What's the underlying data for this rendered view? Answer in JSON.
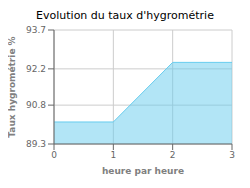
{
  "chart_data": {
    "type": "area",
    "title": "Evolution du taux d'hygrométrie",
    "xlabel": "heure par heure",
    "ylabel": "Taux hygrométrie %",
    "x": [
      0,
      1,
      2,
      3
    ],
    "values": [
      90.15,
      90.15,
      92.45,
      92.45
    ],
    "color": "#66ccee",
    "xlim": [
      0,
      3
    ],
    "ylim": [
      89.3,
      93.7
    ],
    "xticks": [
      0,
      1,
      2,
      3
    ],
    "yticks": [
      89.3,
      90.8,
      92.2,
      93.7
    ],
    "grid": true
  }
}
